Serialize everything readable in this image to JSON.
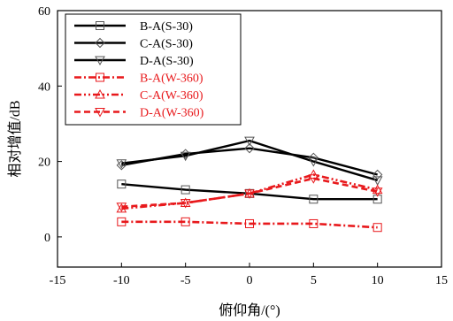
{
  "chart_data": {
    "type": "line",
    "xlabel": "俯仰角/(°)",
    "ylabel": "相对增值/dB",
    "xlim": [
      -15,
      15
    ],
    "ylim": [
      -8,
      60
    ],
    "xticks": [
      -15,
      -10,
      -5,
      0,
      5,
      10,
      15
    ],
    "yticks": [
      0,
      20,
      40,
      60
    ],
    "x": [
      -10,
      -5,
      0,
      5,
      10
    ],
    "legend_position": "top-left",
    "series": [
      {
        "name": "B-A(S-30)",
        "values": [
          14,
          12.5,
          11.5,
          10,
          10
        ],
        "color": "#000000",
        "dash": "solid",
        "marker": "square"
      },
      {
        "name": "C-A(S-30)",
        "values": [
          19,
          22,
          23.5,
          21,
          16.5
        ],
        "color": "#000000",
        "dash": "solid",
        "marker": "diamond"
      },
      {
        "name": "D-A(S-30)",
        "values": [
          19.5,
          21.5,
          25.5,
          20,
          15
        ],
        "color": "#000000",
        "dash": "solid",
        "marker": "triangle-down"
      },
      {
        "name": "B-A(W-360)",
        "values": [
          4,
          4,
          3.5,
          3.5,
          2.5
        ],
        "color": "#e8191c",
        "dash": "dash-dot",
        "marker": "square"
      },
      {
        "name": "C-A(W-360)",
        "values": [
          7.5,
          9,
          11.5,
          16.5,
          12.5
        ],
        "color": "#e8191c",
        "dash": "dash-dot-dot",
        "marker": "triangle-up"
      },
      {
        "name": "D-A(W-360)",
        "values": [
          8,
          9,
          11.5,
          15.5,
          12
        ],
        "color": "#e8191c",
        "dash": "dash",
        "marker": "triangle-down"
      }
    ]
  }
}
